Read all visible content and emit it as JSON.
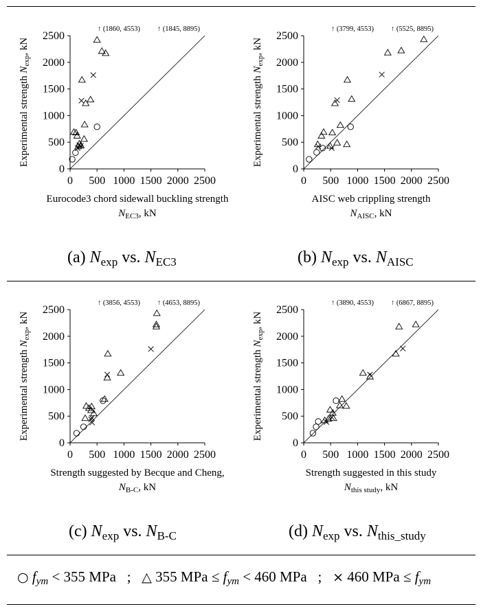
{
  "panels": [
    {
      "caption": {
        "prefix": "(a) ",
        "a": "N",
        "a_sub": "exp",
        "mid": " vs. ",
        "b": "N",
        "b_sub": "EC3"
      },
      "chart_data": {
        "type": "scatter",
        "xlabel_line1": "Eurocode3 chord sidewall buckling strength",
        "xlabel_line2": {
          "main": "N",
          "sub": "EC3",
          "rest": ", kN"
        },
        "ylabel": {
          "prefix": "Experimental strength ",
          "main": "N",
          "sub": "exp",
          "rest": ", kN"
        },
        "xlim": [
          0,
          2500
        ],
        "ylim": [
          0,
          2500
        ],
        "x_ticks": [
          "0",
          "500",
          "1000",
          "1500",
          "2000",
          "2500"
        ],
        "y_ticks": [
          "0",
          "500",
          "1000",
          "1500",
          "2000",
          "2500"
        ],
        "off_scale": [
          "↑ (1860, 4553)",
          "↑ (1845, 8895)"
        ],
        "series": [
          {
            "marker": "circle",
            "points": [
              [
                40,
                180
              ],
              [
                100,
                305
              ],
              [
                500,
                790
              ]
            ]
          },
          {
            "marker": "triangle",
            "points": [
              [
                70,
                690
              ],
              [
                110,
                680
              ],
              [
                130,
                620
              ],
              [
                150,
                420
              ],
              [
                170,
                470
              ],
              [
                200,
                440
              ],
              [
                220,
                1670
              ],
              [
                260,
                560
              ],
              [
                270,
                830
              ],
              [
                290,
                1230
              ],
              [
                380,
                1300
              ],
              [
                500,
                2420
              ],
              [
                590,
                2210
              ],
              [
                660,
                2170
              ]
            ]
          },
          {
            "marker": "x",
            "points": [
              [
                140,
                390
              ],
              [
                170,
                445
              ],
              [
                200,
                430
              ],
              [
                210,
                1280
              ],
              [
                430,
                1760
              ]
            ]
          }
        ]
      }
    },
    {
      "caption": {
        "prefix": "(b) ",
        "a": "N",
        "a_sub": "exp",
        "mid": " vs. ",
        "b": "N",
        "b_sub": "AISC"
      },
      "chart_data": {
        "type": "scatter",
        "xlabel_line1": "AISC web crippling strength",
        "xlabel_line2": {
          "main": "N",
          "sub": "AISC",
          "rest": ", kN"
        },
        "ylabel": {
          "prefix": "Experimental strength ",
          "main": "N",
          "sub": "exp",
          "rest": ", kN"
        },
        "xlim": [
          0,
          2500
        ],
        "ylim": [
          0,
          2500
        ],
        "x_ticks": [
          "0",
          "500",
          "1000",
          "1500",
          "2000",
          "2500"
        ],
        "y_ticks": [
          "0",
          "500",
          "1000",
          "1500",
          "2000",
          "2500"
        ],
        "off_scale": [
          "↑ (3799, 4553)",
          "↑ (5525, 8895)"
        ],
        "series": [
          {
            "marker": "circle",
            "points": [
              [
                100,
                180
              ],
              [
                240,
                310
              ],
              [
                350,
                390
              ],
              [
                870,
                790
              ]
            ]
          },
          {
            "marker": "triangle",
            "points": [
              [
                260,
                460
              ],
              [
                330,
                620
              ],
              [
                370,
                690
              ],
              [
                490,
                430
              ],
              [
                530,
                680
              ],
              [
                580,
                1230
              ],
              [
                620,
                490
              ],
              [
                680,
                820
              ],
              [
                800,
                460
              ],
              [
                810,
                1670
              ],
              [
                890,
                1310
              ],
              [
                1560,
                2180
              ],
              [
                1810,
                2220
              ],
              [
                2230,
                2430
              ]
            ]
          },
          {
            "marker": "x",
            "points": [
              [
                270,
                420
              ],
              [
                520,
                390
              ],
              [
                620,
                1290
              ],
              [
                1450,
                1770
              ]
            ]
          }
        ]
      }
    },
    {
      "caption": {
        "prefix": "(c) ",
        "a": "N",
        "a_sub": "exp",
        "mid": " vs. ",
        "b": "N",
        "b_sub": "B-C"
      },
      "chart_data": {
        "type": "scatter",
        "xlabel_line1": "Strength suggested by Becque and Cheng,",
        "xlabel_line2": {
          "main": "N",
          "sub": "B-C",
          "rest": ", kN"
        },
        "ylabel": {
          "prefix": "Experimental strength ",
          "main": "N",
          "sub": "exp",
          "rest": ", kN"
        },
        "xlim": [
          0,
          2500
        ],
        "ylim": [
          0,
          2500
        ],
        "x_ticks": [
          "0",
          "500",
          "1000",
          "1500",
          "2000",
          "2500"
        ],
        "y_ticks": [
          "0",
          "500",
          "1000",
          "1500",
          "2000",
          "2500"
        ],
        "off_scale": [
          "↑ (3856, 4553)",
          "↑ (4653, 8895)"
        ],
        "series": [
          {
            "marker": "circle",
            "points": [
              [
                120,
                180
              ],
              [
                250,
                300
              ],
              [
                610,
                790
              ]
            ]
          },
          {
            "marker": "triangle",
            "points": [
              [
                280,
                460
              ],
              [
                300,
                690
              ],
              [
                350,
                650
              ],
              [
                390,
                610
              ],
              [
                400,
                680
              ],
              [
                440,
                550
              ],
              [
                640,
                820
              ],
              [
                690,
                1220
              ],
              [
                700,
                1670
              ],
              [
                940,
                1310
              ],
              [
                1600,
                2180
              ],
              [
                1600,
                2220
              ],
              [
                1610,
                2430
              ]
            ]
          },
          {
            "marker": "x",
            "points": [
              [
                390,
                440
              ],
              [
                400,
                470
              ],
              [
                410,
                380
              ],
              [
                690,
                1280
              ],
              [
                1500,
                1760
              ]
            ]
          }
        ]
      }
    },
    {
      "caption": {
        "prefix": "(d) ",
        "a": "N",
        "a_sub": "exp",
        "mid": " vs. ",
        "b": "N",
        "b_sub": "this_study"
      },
      "chart_data": {
        "type": "scatter",
        "xlabel_line1": "Strength suggested in this study",
        "xlabel_line2": {
          "main": "N",
          "sub": "this study",
          "rest": ", kN"
        },
        "ylabel": {
          "prefix": "Experimental strength ",
          "main": "N",
          "sub": "exp",
          "rest": ", kN"
        },
        "xlim": [
          0,
          2500
        ],
        "ylim": [
          0,
          2500
        ],
        "x_ticks": [
          "0",
          "500",
          "1000",
          "1500",
          "2000",
          "2500"
        ],
        "y_ticks": [
          "0",
          "500",
          "1000",
          "1500",
          "2000",
          "2500"
        ],
        "off_scale": [
          "↑ (3890, 4553)",
          "↑ (6867, 8895)"
        ],
        "series": [
          {
            "marker": "circle",
            "points": [
              [
                170,
                180
              ],
              [
                230,
                300
              ],
              [
                270,
                400
              ],
              [
                600,
                790
              ]
            ]
          },
          {
            "marker": "triangle",
            "points": [
              [
                390,
                420
              ],
              [
                460,
                450
              ],
              [
                490,
                620
              ],
              [
                540,
                560
              ],
              [
                550,
                460
              ],
              [
                670,
                700
              ],
              [
                710,
                820
              ],
              [
                790,
                690
              ],
              [
                1100,
                1310
              ],
              [
                1230,
                1240
              ],
              [
                1710,
                1670
              ],
              [
                1770,
                2180
              ],
              [
                2080,
                2220
              ]
            ]
          },
          {
            "marker": "x",
            "points": [
              [
                420,
                390
              ],
              [
                520,
                480
              ],
              [
                1230,
                1280
              ],
              [
                1840,
                1770
              ]
            ]
          }
        ]
      }
    }
  ],
  "legend": {
    "circle_symbol": "○",
    "circle_text_a": "f",
    "circle_sub": "ym",
    "circle_text_b": " < 355 MPa   ;   ",
    "triangle_symbol": "△",
    "triangle_text_a": " 355 MPa ≤ ",
    "triangle_text_b": "f",
    "triangle_sub": "ym",
    "triangle_text_c": " < 460 MPa   ;   ",
    "x_symbol": "×",
    "x_text_a": " 460 MPa ≤ ",
    "x_text_b": "f",
    "x_sub": "ym"
  }
}
